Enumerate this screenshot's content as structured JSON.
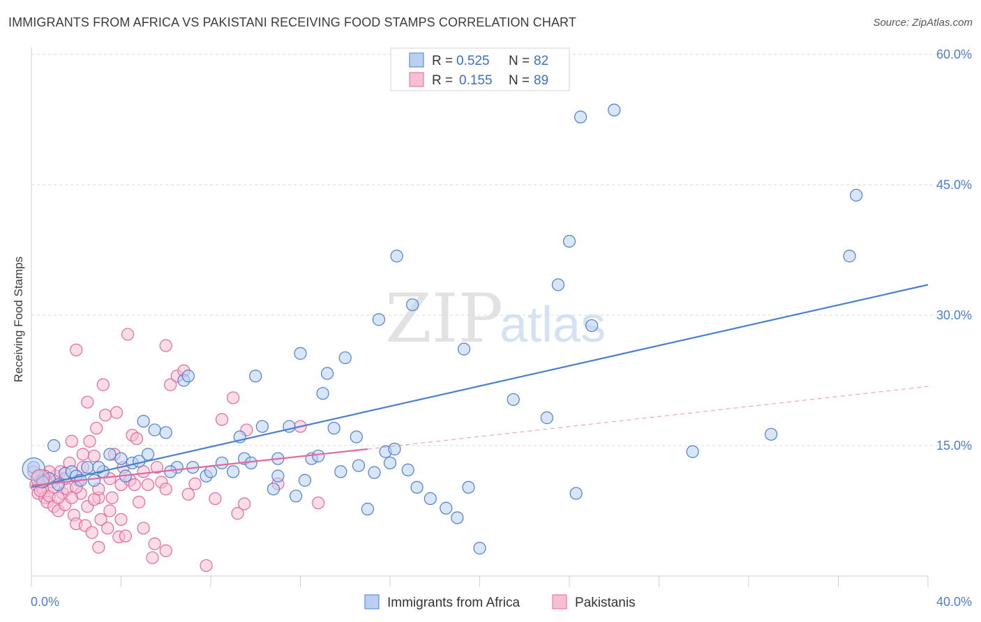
{
  "title": "IMMIGRANTS FROM AFRICA VS PAKISTANI RECEIVING FOOD STAMPS CORRELATION CHART",
  "source": "Source: ZipAtlas.com",
  "watermark": {
    "zip": "ZIP",
    "atlas": "atlas"
  },
  "colors": {
    "blue": "#4a7fd0",
    "blue_fill": "#b9d0f2",
    "pink": "#e4679b",
    "pink_fill": "#f7bfd3",
    "grid": "#d8d8d8",
    "axis_text": "#4a7fd0"
  },
  "legend": {
    "rows": [
      {
        "r_label": "R =",
        "r_value": "0.525",
        "n_label": "N =",
        "n_value": "82"
      },
      {
        "r_label": "R =",
        "r_value": "0.155",
        "n_label": "N =",
        "n_value": "89"
      }
    ]
  },
  "chart_data": {
    "type": "scatter",
    "title": "IMMIGRANTS FROM AFRICA VS PAKISTANI RECEIVING FOOD STAMPS CORRELATION CHART",
    "xlabel": "",
    "ylabel": "Receiving Food Stamps",
    "xlim": [
      0,
      40
    ],
    "ylim": [
      0,
      60
    ],
    "x_tick_labels": [
      "0.0%",
      "40.0%"
    ],
    "y_ticks": [
      15,
      30,
      45,
      60
    ],
    "y_tick_labels": [
      "15.0%",
      "30.0%",
      "45.0%",
      "60.0%"
    ],
    "grid": "horizontal dashed",
    "legend_position": "top-center",
    "series": [
      {
        "name": "Immigrants from Africa",
        "color": "#4a7fd0",
        "R": 0.525,
        "N": 82,
        "trend": {
          "x": [
            0,
            40
          ],
          "y": [
            10.2,
            33.5
          ],
          "style": "solid"
        },
        "points": [
          [
            0.1,
            12.5
          ],
          [
            0.3,
            11.5
          ],
          [
            0.5,
            11.0
          ],
          [
            0.8,
            11.2
          ],
          [
            1.2,
            10.5
          ],
          [
            1.5,
            11.8
          ],
          [
            1.8,
            12.0
          ],
          [
            2.0,
            11.5
          ],
          [
            2.5,
            12.5
          ],
          [
            2.8,
            11.0
          ],
          [
            3.2,
            12.0
          ],
          [
            3.5,
            14.0
          ],
          [
            4.0,
            13.5
          ],
          [
            4.2,
            11.5
          ],
          [
            4.5,
            13.0
          ],
          [
            5.0,
            17.8
          ],
          [
            5.2,
            14.0
          ],
          [
            5.5,
            16.8
          ],
          [
            6.0,
            16.5
          ],
          [
            6.5,
            12.5
          ],
          [
            6.8,
            22.5
          ],
          [
            7.0,
            23.0
          ],
          [
            7.2,
            12.5
          ],
          [
            7.8,
            11.5
          ],
          [
            8.0,
            12.0
          ],
          [
            8.5,
            13.0
          ],
          [
            9.0,
            12.0
          ],
          [
            9.3,
            16.0
          ],
          [
            9.5,
            13.5
          ],
          [
            9.8,
            13.0
          ],
          [
            10.0,
            23.0
          ],
          [
            10.3,
            17.2
          ],
          [
            10.8,
            10.0
          ],
          [
            11.0,
            11.5
          ],
          [
            11.0,
            13.5
          ],
          [
            11.5,
            17.2
          ],
          [
            11.8,
            9.2
          ],
          [
            12.0,
            25.6
          ],
          [
            12.2,
            11.0
          ],
          [
            12.5,
            13.5
          ],
          [
            12.8,
            13.8
          ],
          [
            13.0,
            21.0
          ],
          [
            13.2,
            23.3
          ],
          [
            13.5,
            17.0
          ],
          [
            13.8,
            12.0
          ],
          [
            14.0,
            25.1
          ],
          [
            14.5,
            16.0
          ],
          [
            14.6,
            12.7
          ],
          [
            15.0,
            7.7
          ],
          [
            15.3,
            11.9
          ],
          [
            15.5,
            29.5
          ],
          [
            15.8,
            14.3
          ],
          [
            16.0,
            13.0
          ],
          [
            16.2,
            14.6
          ],
          [
            16.3,
            36.8
          ],
          [
            16.8,
            12.2
          ],
          [
            17.0,
            31.2
          ],
          [
            17.2,
            10.2
          ],
          [
            17.8,
            8.9
          ],
          [
            18.5,
            7.8
          ],
          [
            19.0,
            6.7
          ],
          [
            19.3,
            26.1
          ],
          [
            19.5,
            10.2
          ],
          [
            20.0,
            3.2
          ],
          [
            21.5,
            20.3
          ],
          [
            23.0,
            18.2
          ],
          [
            23.5,
            33.5
          ],
          [
            24.0,
            38.5
          ],
          [
            24.3,
            9.5
          ],
          [
            24.5,
            52.8
          ],
          [
            25.0,
            28.8
          ],
          [
            26.0,
            53.6
          ],
          [
            29.5,
            14.3
          ],
          [
            33.0,
            16.3
          ],
          [
            36.5,
            36.8
          ],
          [
            36.8,
            43.8
          ],
          [
            1.0,
            15.0
          ],
          [
            2.2,
            11.0
          ],
          [
            3.0,
            12.5
          ],
          [
            4.8,
            13.2
          ],
          [
            6.2,
            12.0
          ],
          [
            0.5,
            10.8
          ]
        ]
      },
      {
        "name": "Pakistanis",
        "color": "#e4679b",
        "R": 0.155,
        "N": 89,
        "trend": {
          "x": [
            0,
            15
          ],
          "y": [
            10.4,
            14.6
          ],
          "style": "solid"
        },
        "trend_extension": {
          "x": [
            15,
            40
          ],
          "y": [
            14.6,
            21.8
          ],
          "style": "dashed"
        },
        "points": [
          [
            0.1,
            12.0
          ],
          [
            0.2,
            10.5
          ],
          [
            0.3,
            9.5
          ],
          [
            0.4,
            11.0
          ],
          [
            0.5,
            10.0
          ],
          [
            0.6,
            9.0
          ],
          [
            0.7,
            8.5
          ],
          [
            0.8,
            9.2
          ],
          [
            0.9,
            10.8
          ],
          [
            1.0,
            8.0
          ],
          [
            1.1,
            11.5
          ],
          [
            1.2,
            7.5
          ],
          [
            1.3,
            12.0
          ],
          [
            1.4,
            9.5
          ],
          [
            1.5,
            8.2
          ],
          [
            1.6,
            10.0
          ],
          [
            1.7,
            13.0
          ],
          [
            1.8,
            15.5
          ],
          [
            1.9,
            7.0
          ],
          [
            2.0,
            6.0
          ],
          [
            2.0,
            26.0
          ],
          [
            2.1,
            11.0
          ],
          [
            2.2,
            9.5
          ],
          [
            2.3,
            14.0
          ],
          [
            2.4,
            5.8
          ],
          [
            2.5,
            20.0
          ],
          [
            2.5,
            8.0
          ],
          [
            2.6,
            15.5
          ],
          [
            2.7,
            5.0
          ],
          [
            2.8,
            13.8
          ],
          [
            2.9,
            17.0
          ],
          [
            3.0,
            9.0
          ],
          [
            3.0,
            3.3
          ],
          [
            3.1,
            6.5
          ],
          [
            3.2,
            22.0
          ],
          [
            3.3,
            18.5
          ],
          [
            3.4,
            5.5
          ],
          [
            3.5,
            7.5
          ],
          [
            3.6,
            9.0
          ],
          [
            3.7,
            14.0
          ],
          [
            3.8,
            18.8
          ],
          [
            3.9,
            4.5
          ],
          [
            4.0,
            10.5
          ],
          [
            4.1,
            12.5
          ],
          [
            4.2,
            4.6
          ],
          [
            4.3,
            27.8
          ],
          [
            4.4,
            11.0
          ],
          [
            4.5,
            16.2
          ],
          [
            4.6,
            10.5
          ],
          [
            4.7,
            15.8
          ],
          [
            4.8,
            8.5
          ],
          [
            5.0,
            5.5
          ],
          [
            5.2,
            10.5
          ],
          [
            5.4,
            2.1
          ],
          [
            5.5,
            3.7
          ],
          [
            5.6,
            12.5
          ],
          [
            5.8,
            10.8
          ],
          [
            6.0,
            2.9
          ],
          [
            6.0,
            26.5
          ],
          [
            6.2,
            22.0
          ],
          [
            6.5,
            23.0
          ],
          [
            6.8,
            23.6
          ],
          [
            7.0,
            9.4
          ],
          [
            7.3,
            10.6
          ],
          [
            7.8,
            1.2
          ],
          [
            8.2,
            8.9
          ],
          [
            8.5,
            18.0
          ],
          [
            9.0,
            20.5
          ],
          [
            9.2,
            7.2
          ],
          [
            9.5,
            8.3
          ],
          [
            9.6,
            16.8
          ],
          [
            11.0,
            10.6
          ],
          [
            12.0,
            17.2
          ],
          [
            12.8,
            8.4
          ],
          [
            1.5,
            11.2
          ],
          [
            0.8,
            12.0
          ],
          [
            1.2,
            9.0
          ],
          [
            2.0,
            10.2
          ],
          [
            2.8,
            8.8
          ],
          [
            3.5,
            11.2
          ],
          [
            0.4,
            9.8
          ],
          [
            0.6,
            11.5
          ],
          [
            1.0,
            10.2
          ],
          [
            1.8,
            9.0
          ],
          [
            2.3,
            12.5
          ],
          [
            3.0,
            10.0
          ],
          [
            4.0,
            6.5
          ],
          [
            5.0,
            12.0
          ],
          [
            6.0,
            10.0
          ]
        ]
      }
    ]
  }
}
